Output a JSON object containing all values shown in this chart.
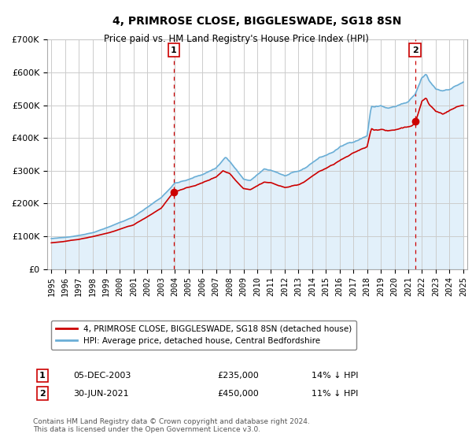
{
  "title": "4, PRIMROSE CLOSE, BIGGLESWADE, SG18 8SN",
  "subtitle": "Price paid vs. HM Land Registry's House Price Index (HPI)",
  "legend_line1": "4, PRIMROSE CLOSE, BIGGLESWADE, SG18 8SN (detached house)",
  "legend_line2": "HPI: Average price, detached house, Central Bedfordshire",
  "purchase1_date": "05-DEC-2003",
  "purchase1_price": 235000,
  "purchase1_year": 2003.92,
  "purchase2_date": "30-JUN-2021",
  "purchase2_price": 450000,
  "purchase2_year": 2021.5,
  "purchase1_pct": "14% ↓ HPI",
  "purchase2_pct": "11% ↓ HPI",
  "footnote": "Contains HM Land Registry data © Crown copyright and database right 2024.\nThis data is licensed under the Open Government Licence v3.0.",
  "hpi_color": "#a8cce8",
  "hpi_line_color": "#6aaed6",
  "hpi_fill_color": "#d6eaf8",
  "price_color": "#cc0000",
  "dashed_vline_color": "#cc0000",
  "grid_color": "#cccccc",
  "background_color": "#ffffff",
  "ylim_min": 0,
  "ylim_max": 700000,
  "xlim_min": 1994.7,
  "xlim_max": 2025.3
}
